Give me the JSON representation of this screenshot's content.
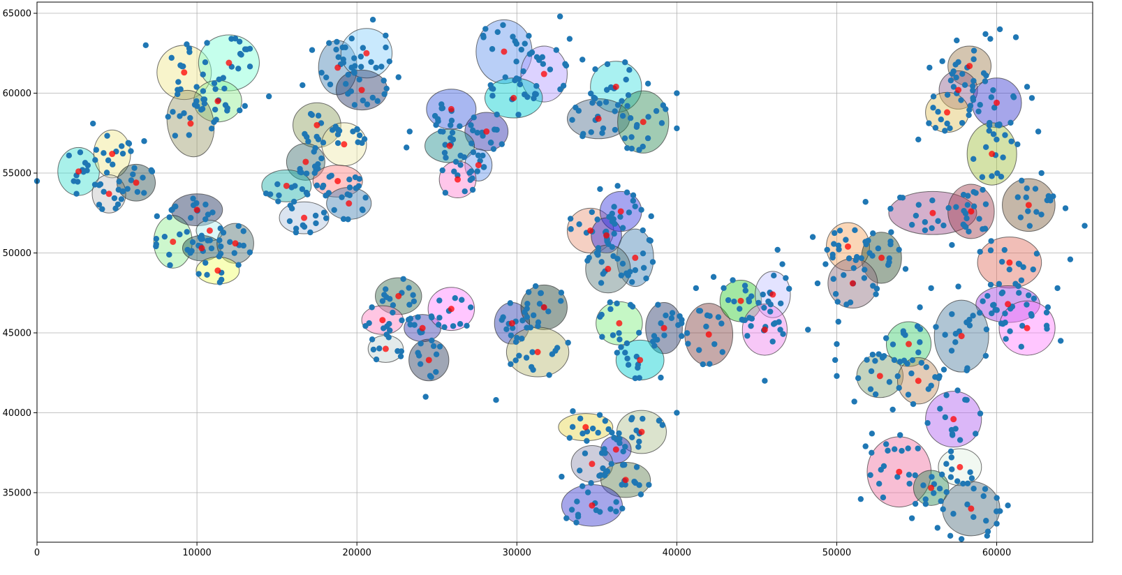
{
  "chart_data": {
    "type": "scatter",
    "title": "",
    "xlabel": "",
    "ylabel": "",
    "xlim": [
      0,
      66000
    ],
    "ylim": [
      31900,
      65700
    ],
    "grid": true,
    "xticks": [
      0,
      10000,
      20000,
      30000,
      40000,
      50000,
      60000
    ],
    "yticks": [
      35000,
      40000,
      45000,
      50000,
      55000,
      60000,
      65000
    ],
    "xtick_labels": [
      "0",
      "10000",
      "20000",
      "30000",
      "40000",
      "50000",
      "60000"
    ],
    "ytick_labels": [
      "35000",
      "40000",
      "45000",
      "50000",
      "55000",
      "60000",
      "65000"
    ],
    "point_color": "#1f77b4",
    "center_color": "#ff0000",
    "clusters": [
      {
        "cx": 2600,
        "cy": 55100,
        "rx": 1300,
        "ry": 1500,
        "angle": 0,
        "color": "#40e0d0",
        "n": 12
      },
      {
        "cx": 4700,
        "cy": 56200,
        "rx": 1150,
        "ry": 1500,
        "angle": 0,
        "color": "#f0e68c",
        "n": 12
      },
      {
        "cx": 4500,
        "cy": 53700,
        "rx": 1050,
        "ry": 1200,
        "angle": 0,
        "color": "#c0c0c0",
        "n": 10
      },
      {
        "cx": 6200,
        "cy": 54400,
        "rx": 1200,
        "ry": 1150,
        "angle": 0,
        "color": "#2f4f4f",
        "n": 10
      },
      {
        "cx": 9200,
        "cy": 61300,
        "rx": 1700,
        "ry": 1700,
        "angle": 0,
        "color": "#f0e68c",
        "n": 14
      },
      {
        "cx": 12000,
        "cy": 61900,
        "rx": 1900,
        "ry": 1750,
        "angle": 0,
        "color": "#7fffd4",
        "n": 16
      },
      {
        "cx": 11300,
        "cy": 59500,
        "rx": 1500,
        "ry": 1300,
        "angle": 0,
        "color": "#90ee90",
        "n": 12
      },
      {
        "cx": 9600,
        "cy": 58100,
        "rx": 1450,
        "ry": 2100,
        "angle": -10,
        "color": "#9c9c6a",
        "n": 14
      },
      {
        "cx": 8500,
        "cy": 50700,
        "rx": 1200,
        "ry": 1650,
        "angle": 0,
        "color": "#90ee90",
        "n": 12
      },
      {
        "cx": 10000,
        "cy": 52700,
        "rx": 1600,
        "ry": 1000,
        "angle": 0,
        "color": "#1c2e5a",
        "n": 12
      },
      {
        "cx": 10800,
        "cy": 51400,
        "rx": 850,
        "ry": 650,
        "angle": 0,
        "color": "#afeeee",
        "n": 6
      },
      {
        "cx": 10300,
        "cy": 50300,
        "rx": 1200,
        "ry": 800,
        "angle": 0,
        "color": "#1f4f4f",
        "n": 8
      },
      {
        "cx": 12400,
        "cy": 50600,
        "rx": 1150,
        "ry": 1250,
        "angle": 0,
        "color": "#4f6f6f",
        "n": 10
      },
      {
        "cx": 11300,
        "cy": 48900,
        "rx": 1350,
        "ry": 850,
        "angle": 0,
        "color": "#f0ff66",
        "n": 8
      },
      {
        "cx": 18800,
        "cy": 61600,
        "rx": 1200,
        "ry": 1700,
        "angle": 0,
        "color": "#4682b4",
        "n": 14
      },
      {
        "cx": 20600,
        "cy": 62500,
        "rx": 1600,
        "ry": 1550,
        "angle": 0,
        "color": "#87cefa",
        "n": 14
      },
      {
        "cx": 20300,
        "cy": 60200,
        "rx": 1600,
        "ry": 1250,
        "angle": 0,
        "color": "#2a3a6a",
        "n": 12
      },
      {
        "cx": 17500,
        "cy": 58000,
        "rx": 1500,
        "ry": 1400,
        "angle": 0,
        "color": "#8f9f5f",
        "n": 12
      },
      {
        "cx": 19200,
        "cy": 56800,
        "rx": 1400,
        "ry": 1350,
        "angle": 0,
        "color": "#eee8aa",
        "n": 12
      },
      {
        "cx": 16800,
        "cy": 55700,
        "rx": 1200,
        "ry": 1150,
        "angle": 0,
        "color": "#3f6f6f",
        "n": 10
      },
      {
        "cx": 15600,
        "cy": 54200,
        "rx": 1550,
        "ry": 1000,
        "angle": 0,
        "color": "#20b2aa",
        "n": 12
      },
      {
        "cx": 18800,
        "cy": 54500,
        "rx": 1550,
        "ry": 1000,
        "angle": 0,
        "color": "#ff8080",
        "n": 12
      },
      {
        "cx": 16700,
        "cy": 52200,
        "rx": 1550,
        "ry": 1000,
        "angle": 0,
        "color": "#b0c4de",
        "n": 12
      },
      {
        "cx": 19500,
        "cy": 53100,
        "rx": 1400,
        "ry": 1000,
        "angle": 0,
        "color": "#4682b4",
        "n": 10
      },
      {
        "cx": 29200,
        "cy": 62600,
        "rx": 1750,
        "ry": 2000,
        "angle": 0,
        "color": "#6495ed",
        "n": 16
      },
      {
        "cx": 31700,
        "cy": 61200,
        "rx": 1450,
        "ry": 1750,
        "angle": 0,
        "color": "#b19cff",
        "n": 14
      },
      {
        "cx": 29800,
        "cy": 59700,
        "rx": 1800,
        "ry": 1250,
        "angle": 0,
        "color": "#00ced1",
        "n": 14
      },
      {
        "cx": 25900,
        "cy": 59000,
        "rx": 1550,
        "ry": 1250,
        "angle": 0,
        "color": "#3f5fdf",
        "n": 12
      },
      {
        "cx": 28100,
        "cy": 57600,
        "rx": 1350,
        "ry": 1200,
        "angle": 0,
        "color": "#2a2aaa",
        "n": 12
      },
      {
        "cx": 25800,
        "cy": 56700,
        "rx": 1550,
        "ry": 1050,
        "angle": 0,
        "color": "#1f8f8f",
        "n": 12
      },
      {
        "cx": 27600,
        "cy": 55500,
        "rx": 850,
        "ry": 1000,
        "angle": 0,
        "color": "#6495ed",
        "n": 8
      },
      {
        "cx": 26300,
        "cy": 54600,
        "rx": 1150,
        "ry": 1150,
        "angle": 0,
        "color": "#ff80d0",
        "n": 10
      },
      {
        "cx": 36200,
        "cy": 60400,
        "rx": 1600,
        "ry": 1600,
        "angle": 0,
        "color": "#40e0e0",
        "n": 14
      },
      {
        "cx": 35100,
        "cy": 58400,
        "rx": 1950,
        "ry": 1250,
        "angle": 0,
        "color": "#4f6f8f",
        "n": 14
      },
      {
        "cx": 37900,
        "cy": 58200,
        "rx": 1600,
        "ry": 1950,
        "angle": 0,
        "color": "#2e8b57",
        "n": 16
      },
      {
        "cx": 22600,
        "cy": 47300,
        "rx": 1450,
        "ry": 1150,
        "angle": 0,
        "color": "#3f6f4f",
        "n": 12
      },
      {
        "cx": 21600,
        "cy": 45800,
        "rx": 1300,
        "ry": 900,
        "angle": 0,
        "color": "#ff80c0",
        "n": 10
      },
      {
        "cx": 24100,
        "cy": 45300,
        "rx": 1150,
        "ry": 850,
        "angle": 0,
        "color": "#3a3ab0",
        "n": 10
      },
      {
        "cx": 25900,
        "cy": 46500,
        "rx": 1450,
        "ry": 1350,
        "angle": 0,
        "color": "#ff80ff",
        "n": 12
      },
      {
        "cx": 21800,
        "cy": 44000,
        "rx": 1100,
        "ry": 850,
        "angle": 0,
        "color": "#c0d0d0",
        "n": 8
      },
      {
        "cx": 24500,
        "cy": 43300,
        "rx": 1250,
        "ry": 1300,
        "angle": 0,
        "color": "#2a3a5a",
        "n": 10
      },
      {
        "cx": 29700,
        "cy": 45600,
        "rx": 1100,
        "ry": 1300,
        "angle": 0,
        "color": "#2a3ab0",
        "n": 12
      },
      {
        "cx": 31700,
        "cy": 46600,
        "rx": 1450,
        "ry": 1400,
        "angle": 0,
        "color": "#1f3f2f",
        "n": 14
      },
      {
        "cx": 31300,
        "cy": 43800,
        "rx": 1950,
        "ry": 1550,
        "angle": 0,
        "color": "#b8b870",
        "n": 16
      },
      {
        "cx": 34600,
        "cy": 51400,
        "rx": 1450,
        "ry": 1400,
        "angle": 0,
        "color": "#e9967a",
        "n": 12
      },
      {
        "cx": 36500,
        "cy": 52600,
        "rx": 1300,
        "ry": 1250,
        "angle": 0,
        "color": "#3a3ae0",
        "n": 10
      },
      {
        "cx": 35600,
        "cy": 51100,
        "rx": 950,
        "ry": 1100,
        "angle": 0,
        "color": "#2a2ae0",
        "n": 8
      },
      {
        "cx": 37400,
        "cy": 49700,
        "rx": 1150,
        "ry": 1800,
        "angle": 0,
        "color": "#4682b4",
        "n": 14
      },
      {
        "cx": 35700,
        "cy": 49000,
        "rx": 1400,
        "ry": 1500,
        "angle": 0,
        "color": "#5f7f7f",
        "n": 12
      },
      {
        "cx": 36400,
        "cy": 45600,
        "rx": 1450,
        "ry": 1350,
        "angle": 0,
        "color": "#7fee7f",
        "n": 12
      },
      {
        "cx": 39200,
        "cy": 45300,
        "rx": 1150,
        "ry": 1600,
        "angle": 0,
        "color": "#2a3a6a",
        "n": 12
      },
      {
        "cx": 37700,
        "cy": 43300,
        "rx": 1500,
        "ry": 1250,
        "angle": 0,
        "color": "#00ced1",
        "n": 12
      },
      {
        "cx": 34300,
        "cy": 39100,
        "rx": 1700,
        "ry": 850,
        "angle": 0,
        "color": "#e6d44c",
        "n": 12
      },
      {
        "cx": 37800,
        "cy": 38800,
        "rx": 1550,
        "ry": 1350,
        "angle": 0,
        "color": "#b0c090",
        "n": 12
      },
      {
        "cx": 36200,
        "cy": 37700,
        "rx": 950,
        "ry": 850,
        "angle": 0,
        "color": "#2a2ad0",
        "n": 8
      },
      {
        "cx": 34700,
        "cy": 36800,
        "rx": 1300,
        "ry": 1150,
        "angle": 0,
        "color": "#9090b0",
        "n": 10
      },
      {
        "cx": 36800,
        "cy": 35800,
        "rx": 1550,
        "ry": 1100,
        "angle": 0,
        "color": "#5f7f4f",
        "n": 12
      },
      {
        "cx": 34700,
        "cy": 34200,
        "rx": 1900,
        "ry": 1300,
        "angle": 0,
        "color": "#3a3ad0",
        "n": 14
      },
      {
        "cx": 42000,
        "cy": 44900,
        "rx": 1500,
        "ry": 1950,
        "angle": 0,
        "color": "#804040",
        "n": 14
      },
      {
        "cx": 44000,
        "cy": 47000,
        "rx": 1300,
        "ry": 1300,
        "angle": 0,
        "color": "#32cd32",
        "n": 12
      },
      {
        "cx": 46000,
        "cy": 47400,
        "rx": 1100,
        "ry": 1450,
        "angle": 0,
        "color": "#c0c0ff",
        "n": 10
      },
      {
        "cx": 45500,
        "cy": 45200,
        "rx": 1400,
        "ry": 1600,
        "angle": 0,
        "color": "#ee82ee",
        "n": 14
      },
      {
        "cx": 50700,
        "cy": 50400,
        "rx": 1350,
        "ry": 1500,
        "angle": 0,
        "color": "#f4a460",
        "n": 12
      },
      {
        "cx": 52800,
        "cy": 49700,
        "rx": 1250,
        "ry": 1600,
        "angle": 0,
        "color": "#2f4f2f",
        "n": 12
      },
      {
        "cx": 51000,
        "cy": 48100,
        "rx": 1550,
        "ry": 1550,
        "angle": 0,
        "color": "#8f6f7f",
        "n": 14
      },
      {
        "cx": 56000,
        "cy": 52500,
        "rx": 2750,
        "ry": 1350,
        "angle": 0,
        "color": "#a04f8f",
        "n": 18
      },
      {
        "cx": 58400,
        "cy": 52600,
        "rx": 1450,
        "ry": 1700,
        "angle": 0,
        "color": "#a0404f",
        "n": 14
      },
      {
        "cx": 62000,
        "cy": 53000,
        "rx": 1650,
        "ry": 1650,
        "angle": 0,
        "color": "#7f5f3f",
        "n": 14
      },
      {
        "cx": 60800,
        "cy": 49400,
        "rx": 2000,
        "ry": 1600,
        "angle": 0,
        "color": "#e06f5f",
        "n": 16
      },
      {
        "cx": 60700,
        "cy": 46800,
        "rx": 2000,
        "ry": 1150,
        "angle": 0,
        "color": "#9f3fdf",
        "n": 14
      },
      {
        "cx": 61900,
        "cy": 45300,
        "rx": 1750,
        "ry": 1700,
        "angle": 0,
        "color": "#ff80ff",
        "n": 14
      },
      {
        "cx": 57800,
        "cy": 44800,
        "rx": 1700,
        "ry": 2250,
        "angle": 0,
        "color": "#4f7f9f",
        "n": 16
      },
      {
        "cx": 54500,
        "cy": 44300,
        "rx": 1400,
        "ry": 1400,
        "angle": 0,
        "color": "#3fcf6f",
        "n": 12
      },
      {
        "cx": 52700,
        "cy": 42300,
        "rx": 1450,
        "ry": 1350,
        "angle": 0,
        "color": "#7f9f6f",
        "n": 12
      },
      {
        "cx": 55100,
        "cy": 42000,
        "rx": 1300,
        "ry": 1450,
        "angle": 0,
        "color": "#c08f5f",
        "n": 12
      },
      {
        "cx": 58300,
        "cy": 61700,
        "rx": 1350,
        "ry": 1250,
        "angle": 0,
        "color": "#9f7f4f",
        "n": 12
      },
      {
        "cx": 57600,
        "cy": 60200,
        "rx": 1200,
        "ry": 1200,
        "angle": 0,
        "color": "#8f5f8f",
        "n": 10
      },
      {
        "cx": 60000,
        "cy": 59400,
        "rx": 1550,
        "ry": 1550,
        "angle": 0,
        "color": "#3a3ad0",
        "n": 14
      },
      {
        "cx": 56900,
        "cy": 58800,
        "rx": 1350,
        "ry": 1250,
        "angle": 0,
        "color": "#e0c060",
        "n": 12
      },
      {
        "cx": 59700,
        "cy": 56200,
        "rx": 1550,
        "ry": 1950,
        "angle": 0,
        "color": "#9fbf3f",
        "n": 14
      },
      {
        "cx": 57300,
        "cy": 39600,
        "rx": 1750,
        "ry": 1750,
        "angle": 0,
        "color": "#b060f0",
        "n": 14
      },
      {
        "cx": 53900,
        "cy": 36300,
        "rx": 2000,
        "ry": 2200,
        "angle": 0,
        "color": "#f06f9f",
        "n": 18
      },
      {
        "cx": 57700,
        "cy": 36600,
        "rx": 1350,
        "ry": 1150,
        "angle": 0,
        "color": "#e0f0e0",
        "n": 10
      },
      {
        "cx": 55900,
        "cy": 35300,
        "rx": 1100,
        "ry": 1100,
        "angle": 0,
        "color": "#2e8b57",
        "n": 8
      },
      {
        "cx": 58400,
        "cy": 34000,
        "rx": 1800,
        "ry": 1700,
        "angle": 0,
        "color": "#4f6f7f",
        "n": 14
      }
    ],
    "outliers": [
      [
        0,
        54500
      ],
      [
        2000,
        56100
      ],
      [
        3500,
        58100
      ],
      [
        6700,
        57000
      ],
      [
        6800,
        63000
      ],
      [
        7200,
        55100
      ],
      [
        7500,
        52300
      ],
      [
        13000,
        59200
      ],
      [
        14500,
        59800
      ],
      [
        16600,
        60500
      ],
      [
        17200,
        62700
      ],
      [
        21000,
        64600
      ],
      [
        22600,
        61000
      ],
      [
        23300,
        57600
      ],
      [
        23100,
        56600
      ],
      [
        28700,
        40800
      ],
      [
        24300,
        41000
      ],
      [
        27900,
        63600
      ],
      [
        32700,
        64800
      ],
      [
        33300,
        63400
      ],
      [
        34100,
        62100
      ],
      [
        34900,
        61500
      ],
      [
        38200,
        60600
      ],
      [
        39300,
        59000
      ],
      [
        40000,
        57800
      ],
      [
        40000,
        60000
      ],
      [
        33900,
        51800
      ],
      [
        35200,
        54000
      ],
      [
        36300,
        54200
      ],
      [
        38400,
        52300
      ],
      [
        40300,
        45600
      ],
      [
        40300,
        44800
      ],
      [
        40000,
        40000
      ],
      [
        39000,
        42200
      ],
      [
        33500,
        40100
      ],
      [
        32800,
        36000
      ],
      [
        33100,
        33400
      ],
      [
        41200,
        47800
      ],
      [
        42300,
        48500
      ],
      [
        43500,
        48300
      ],
      [
        46300,
        50200
      ],
      [
        46600,
        49300
      ],
      [
        45500,
        42000
      ],
      [
        48200,
        45200
      ],
      [
        48800,
        48100
      ],
      [
        49300,
        49300
      ],
      [
        50200,
        51400
      ],
      [
        50100,
        45700
      ],
      [
        50000,
        42300
      ],
      [
        51100,
        40700
      ],
      [
        49900,
        43300
      ],
      [
        50000,
        44300
      ],
      [
        51800,
        53200
      ],
      [
        53400,
        51300
      ],
      [
        54300,
        49000
      ],
      [
        55200,
        46600
      ],
      [
        55900,
        47800
      ],
      [
        57200,
        50500
      ],
      [
        57600,
        47900
      ],
      [
        56700,
        42700
      ],
      [
        53500,
        40200
      ],
      [
        53600,
        43300
      ],
      [
        52200,
        38700
      ],
      [
        51800,
        37900
      ],
      [
        52900,
        34700
      ],
      [
        51500,
        34600
      ],
      [
        54700,
        33400
      ],
      [
        56300,
        32800
      ],
      [
        57100,
        32300
      ],
      [
        57800,
        32100
      ],
      [
        59400,
        32300
      ],
      [
        60700,
        34200
      ],
      [
        63200,
        46600
      ],
      [
        64000,
        44500
      ],
      [
        63800,
        47800
      ],
      [
        65500,
        51700
      ],
      [
        62800,
        55000
      ],
      [
        64300,
        52800
      ],
      [
        64600,
        49600
      ],
      [
        55100,
        57100
      ],
      [
        55800,
        61600
      ],
      [
        56600,
        62000
      ],
      [
        57500,
        63300
      ],
      [
        59300,
        63700
      ],
      [
        59600,
        63400
      ],
      [
        60200,
        64000
      ],
      [
        61200,
        63500
      ],
      [
        61900,
        60400
      ],
      [
        62200,
        59700
      ],
      [
        61300,
        56800
      ],
      [
        62600,
        57600
      ],
      [
        49400,
        50200
      ],
      [
        48500,
        51000
      ]
    ]
  }
}
